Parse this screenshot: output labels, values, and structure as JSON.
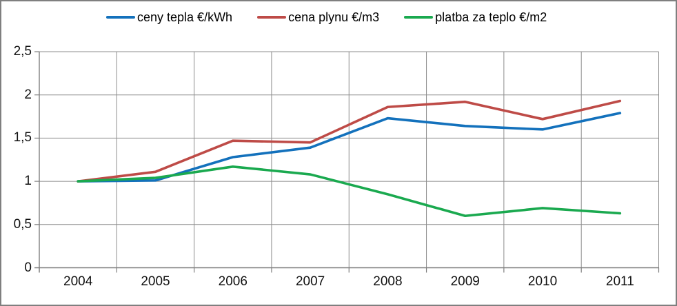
{
  "chart_data": {
    "type": "line",
    "title": "",
    "xlabel": "",
    "ylabel": "",
    "categories": [
      "2004",
      "2005",
      "2006",
      "2007",
      "2008",
      "2009",
      "2010",
      "2011"
    ],
    "series": [
      {
        "name": "ceny tepla €/kWh",
        "color": "#1371bc",
        "values": [
          1.0,
          1.01,
          1.28,
          1.39,
          1.73,
          1.64,
          1.6,
          1.79
        ]
      },
      {
        "name": "cena plynu €/m3",
        "color": "#be4b47",
        "values": [
          1.0,
          1.11,
          1.47,
          1.45,
          1.86,
          1.92,
          1.72,
          1.93
        ]
      },
      {
        "name": "platba za teplo €/m2",
        "color": "#1aa94f",
        "values": [
          1.0,
          1.04,
          1.17,
          1.08,
          0.85,
          0.6,
          0.69,
          0.63
        ]
      }
    ],
    "ylim": [
      0,
      2.5
    ],
    "ytick_values": [
      0,
      0.5,
      1,
      1.5,
      2,
      2.5
    ],
    "ytick_labels": [
      "0",
      "0,5",
      "1",
      "1,5",
      "2",
      "2,5"
    ],
    "grid": true,
    "legend_position": "top",
    "colors": {
      "grid": "#8c8c8c",
      "axis": "#7f7f7f",
      "border": "#7f7f7f",
      "background": "#ffffff",
      "text": "#111111"
    }
  }
}
